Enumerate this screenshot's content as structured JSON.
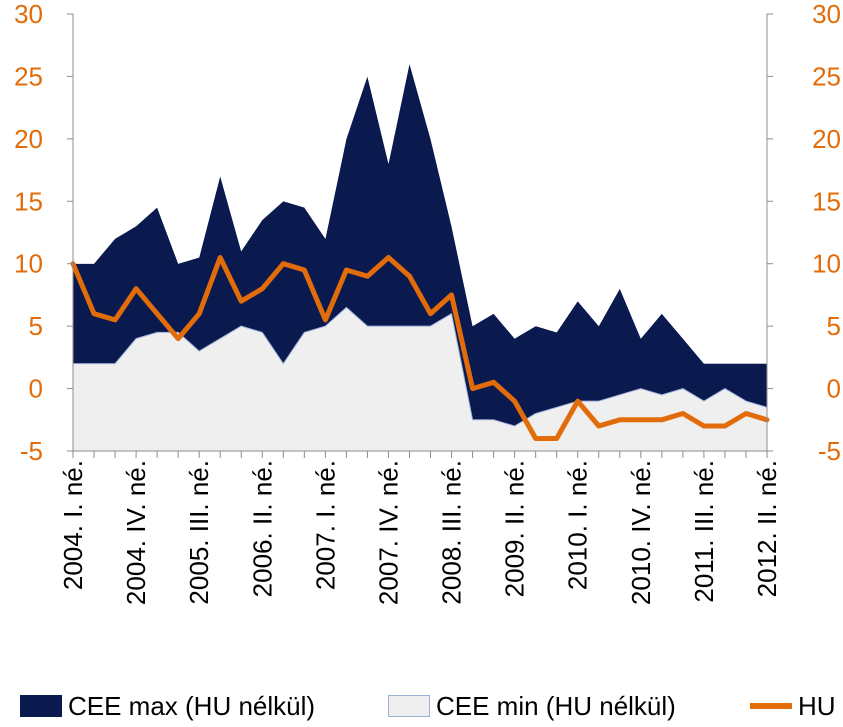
{
  "chart_data": {
    "type": "area",
    "categories": [
      "2004. I. né.",
      "2004. II. né.",
      "2004. III. né.",
      "2004. IV. né.",
      "2005. I. né.",
      "2005. II. né.",
      "2005. III. né.",
      "2005. IV. né.",
      "2006. I. né.",
      "2006. II. né.",
      "2006. III. né.",
      "2006. IV. né.",
      "2007. I. né.",
      "2007. II. né.",
      "2007. III. né.",
      "2007. IV. né.",
      "2008. I. né.",
      "2008. II. né.",
      "2008. III. né.",
      "2008. IV. né.",
      "2009. I. né.",
      "2009. II. né.",
      "2009. III. né.",
      "2009. IV. né.",
      "2010. I. né.",
      "2010. II. né.",
      "2010. III. né.",
      "2010. IV. né.",
      "2011. I. né.",
      "2011. II. né.",
      "2011. III. né.",
      "2011. IV. né.",
      "2012. I. né.",
      "2012. II. né."
    ],
    "visible_tick_labels": [
      "2004. I. né.",
      "2004. IV. né.",
      "2005. III. né.",
      "2006. II. né.",
      "2007. I. né.",
      "2007. IV. né.",
      "2008. III. né.",
      "2009. II. né.",
      "2010. I. né.",
      "2010. IV. né.",
      "2011. III. né.",
      "2012. II. né."
    ],
    "series": [
      {
        "name": "CEE max (HU nélkül)",
        "values": [
          10,
          10,
          12,
          13,
          14.5,
          10,
          10.5,
          17,
          11,
          13.5,
          15,
          14.5,
          12,
          20,
          25,
          18,
          26,
          20,
          13,
          5,
          6,
          4,
          5,
          4.5,
          7,
          5,
          8,
          4,
          6,
          4,
          2,
          2,
          2,
          2
        ]
      },
      {
        "name": "CEE min (HU nélkül)",
        "values": [
          2,
          2,
          2,
          4,
          4.5,
          4.5,
          3,
          4,
          5,
          4.5,
          2,
          4.5,
          5,
          6.5,
          5,
          5,
          5,
          5,
          6,
          -2.5,
          -2.5,
          -3,
          -2,
          -1.5,
          -1,
          -1,
          -0.5,
          0,
          -0.5,
          0,
          -1,
          0,
          -1,
          -1.5
        ]
      },
      {
        "name": "HU",
        "values": [
          10,
          6,
          5.5,
          8,
          6,
          4,
          6,
          10.5,
          7,
          8,
          10,
          9.5,
          5.5,
          9.5,
          9,
          10.5,
          9,
          6,
          7.5,
          0,
          0.5,
          -1,
          -4,
          -4,
          -1,
          -3,
          -2.5,
          -2.5,
          -2.5,
          -2,
          -3,
          -3,
          -2,
          -2.5
        ]
      }
    ],
    "yticks": [
      "30",
      "25",
      "20",
      "15",
      "10",
      "5",
      "0",
      "-5"
    ],
    "ylim": [
      -5,
      30
    ],
    "colors": {
      "max": "#0A1A4F",
      "min": "#EFEFEF",
      "hu": "#E36C0A",
      "grid": "#8C8C8C"
    },
    "grid": false,
    "legend_position": "bottom"
  },
  "legend": {
    "max_label": "CEE max (HU nélkül)",
    "min_label": "CEE min (HU nélkül)",
    "hu_label": "HU"
  }
}
